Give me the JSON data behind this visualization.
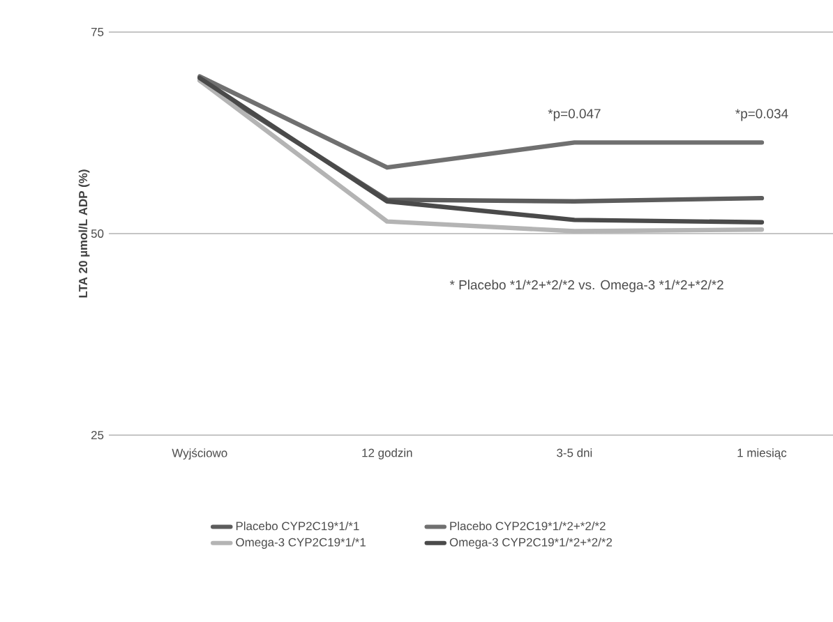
{
  "chart_data": {
    "type": "line",
    "ylabel": "LTA 20 µmol/L ADP (%)",
    "categories": [
      "Wyjściowo",
      "12 godzin",
      "3-5 dni",
      "1 miesiąc"
    ],
    "ylim": [
      25,
      75
    ],
    "yticks": [
      25,
      50,
      75
    ],
    "grid": "y",
    "legend": "bottom",
    "line_style": "solid",
    "marker": "none",
    "series": [
      {
        "name": "Placebo CYP2C19*1/*1",
        "color": "#5c5c5c",
        "values": [
          69,
          54.2,
          54,
          54.4
        ]
      },
      {
        "name": "Placebo  CYP2C19*1/*2+*2/*2",
        "color": "#707070",
        "values": [
          69.5,
          58.2,
          61.3,
          61.3
        ]
      },
      {
        "name": "Omega-3 CYP2C19*1/*1",
        "color": "#b4b4b4",
        "values": [
          69,
          51.5,
          50.3,
          50.5
        ]
      },
      {
        "name": "Omega-3  CYP2C19*1/*2+*2/*2",
        "color": "#4a4a4a",
        "values": [
          69.3,
          54,
          51.7,
          51.4
        ]
      }
    ],
    "annotations": [
      {
        "text": "*p=0.047",
        "x": "3-5 dni",
        "y": 61.3
      },
      {
        "text": "*p=0.034",
        "x": "1 miesiąc",
        "y": 61.3
      },
      "* Placebo *1/*2+*2/*2 vs. Omega-3 *1/*2+*2/*2"
    ]
  }
}
